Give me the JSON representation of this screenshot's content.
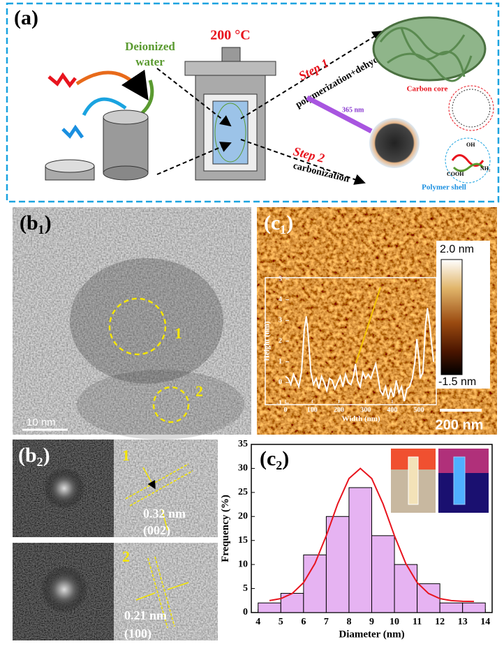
{
  "panels": {
    "a": {
      "label": "(a)",
      "temperature": "200 °C",
      "water": [
        "Deionized",
        "water"
      ],
      "step1": "Step 1",
      "step1_process": "polymerization+dehydration",
      "step2": "Step 2",
      "step2_process": "carbonization",
      "uv": "365 nm",
      "core": "Carbon core",
      "shell": "Polymer shell",
      "groups": [
        "OH",
        "COOH",
        "NH₂"
      ]
    },
    "b1": {
      "label": "(b₁)",
      "markers": [
        "1",
        "2"
      ],
      "scale": "10 nm"
    },
    "c1": {
      "label": "(c₁)",
      "color_max": "2.0 nm",
      "color_min": "-1.5 nm",
      "scale": "200 nm"
    },
    "b2": {
      "label": "(b₂)",
      "regions": [
        {
          "marker": "1",
          "spacing": "0.32 nm",
          "plane": "(002)"
        },
        {
          "marker": "2",
          "spacing": "0.21 nm",
          "plane": "(100)"
        }
      ]
    },
    "c2": {
      "label": "(c₂)"
    }
  },
  "chart_data": [
    {
      "type": "line",
      "x_label": "Width (nm)",
      "y_label": "Height (nm)",
      "color": "#ffffff",
      "x": [
        0,
        10,
        20,
        30,
        40,
        50,
        60,
        70,
        78,
        85,
        95,
        105,
        115,
        125,
        135,
        145,
        155,
        165,
        175,
        185,
        195,
        205,
        215,
        225,
        235,
        245,
        255,
        262,
        270,
        280,
        290,
        300,
        310,
        320,
        330,
        338,
        345,
        355,
        365,
        375,
        385,
        395,
        405,
        415,
        425,
        435,
        445,
        455,
        465,
        475,
        485,
        492,
        500,
        505,
        515,
        525,
        532,
        540,
        548,
        555
      ],
      "values": [
        0.3,
        0.2,
        -0.1,
        0.4,
        0.1,
        -0.2,
        0.5,
        2.5,
        3.2,
        2.3,
        0.5,
        -0.1,
        0.2,
        -0.3,
        0.3,
        0,
        -0.4,
        0.2,
        0.1,
        -0.3,
        0,
        0.3,
        -0.2,
        0.4,
        0,
        -0.1,
        0.3,
        0.9,
        0.1,
        -0.2,
        0.5,
        0.2,
        0.4,
        0.2,
        0.6,
        0.9,
        0.4,
        -0.4,
        -0.6,
        -0.2,
        -0.8,
        -0.3,
        -0.7,
        0.1,
        -0.5,
        -0.2,
        -0.9,
        -0.3,
        -0.2,
        0.2,
        1.0,
        2.1,
        1.2,
        0.2,
        0.5,
        2.8,
        3.6,
        2.8,
        1.8,
        1.0
      ],
      "xlim": [
        0,
        565
      ],
      "ylim": [
        -1,
        5
      ],
      "xticks": [
        0,
        100,
        200,
        300,
        400,
        500
      ],
      "yticks": [
        -1,
        0,
        1,
        2,
        3,
        4,
        5
      ]
    },
    {
      "type": "histogram",
      "x_label": "Diameter (nm)",
      "y_label": "Frequency (%)",
      "color": "#e6b3f2",
      "bins": [
        4,
        5,
        6,
        7,
        8,
        9,
        10,
        11,
        12,
        13,
        14
      ],
      "values": [
        2,
        4,
        12,
        20,
        26,
        16,
        10,
        6,
        2,
        2
      ],
      "fit": {
        "color": "#e8141e",
        "x": [
          4.5,
          5,
          5.5,
          6,
          6.5,
          7,
          7.5,
          8,
          8.5,
          9,
          9.5,
          10,
          10.5,
          11,
          11.5,
          12,
          12.5,
          13,
          13.5
        ],
        "values": [
          2.49,
          2.9,
          3.97,
          6.23,
          10.2,
          16.0,
          22.6,
          27.9,
          30.0,
          27.9,
          22.6,
          16.0,
          10.2,
          6.23,
          3.97,
          2.9,
          2.49,
          2.35,
          2.3
        ]
      },
      "xlim": [
        3.7,
        14.3
      ],
      "ylim": [
        0,
        35
      ],
      "xticks": [
        4,
        5,
        6,
        7,
        8,
        9,
        10,
        11,
        12,
        13,
        14
      ],
      "yticks": [
        0,
        5,
        10,
        15,
        20,
        25,
        30,
        35
      ]
    }
  ]
}
